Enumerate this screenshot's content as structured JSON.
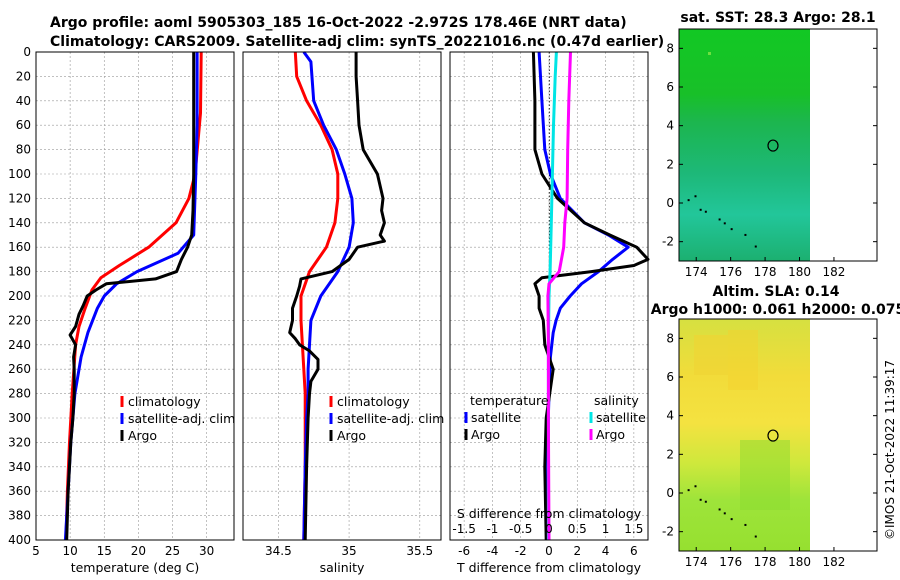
{
  "page": {
    "title_line1": "Argo profile: aoml 5905303_185 16-Oct-2022 -2.972S 178.46E (NRT data)",
    "title_line2": "Climatology: CARS2009. Satellite-adj clim: synTS_20221016.nc (0.47d earlier)",
    "credit": "©IMOS 21-Oct-2022 11:39:17"
  },
  "colors": {
    "climatology": "#ff0000",
    "satellite": "#0000ff",
    "argo": "#000000",
    "sal_satellite": "#00e5e5",
    "sal_argo": "#ff00ff"
  },
  "chart_data": [
    {
      "type": "line",
      "id": "temperature",
      "xlabel": "temperature (deg C)",
      "xlim": [
        5,
        34
      ],
      "xticks": [
        5,
        10,
        15,
        20,
        25,
        30
      ],
      "ylim": [
        400,
        0
      ],
      "yticks": [
        0,
        20,
        40,
        60,
        80,
        100,
        120,
        140,
        160,
        180,
        200,
        220,
        240,
        260,
        280,
        300,
        320,
        340,
        360,
        380,
        400
      ],
      "legend": [
        "climatology",
        "satellite-adj. clim",
        "Argo"
      ],
      "series": [
        {
          "name": "climatology",
          "color": "#ff0000",
          "depth": [
            0,
            50,
            100,
            120,
            140,
            160,
            175,
            185,
            195,
            210,
            225,
            240,
            280,
            320,
            360,
            400
          ],
          "values": [
            29.2,
            29.1,
            28.3,
            27.4,
            25.5,
            21.5,
            17.2,
            14.5,
            13.2,
            12.2,
            11.3,
            10.8,
            10.3,
            9.9,
            9.6,
            9.4
          ]
        },
        {
          "name": "satellite-adj. clim",
          "color": "#0000ff",
          "depth": [
            0,
            60,
            100,
            150,
            165,
            180,
            190,
            200,
            210,
            230,
            250,
            280,
            320,
            360,
            400
          ],
          "values": [
            28.6,
            28.6,
            28.4,
            28.1,
            25.8,
            19.8,
            16.8,
            15.0,
            14.0,
            12.6,
            11.6,
            10.7,
            10.1,
            9.7,
            9.3
          ]
        },
        {
          "name": "Argo",
          "color": "#000000",
          "depth": [
            0,
            50,
            100,
            130,
            150,
            160,
            170,
            180,
            186,
            190,
            195,
            200,
            208,
            215,
            225,
            232,
            240,
            250,
            260,
            280,
            300,
            320,
            340,
            360,
            380,
            400
          ],
          "values": [
            28.1,
            28.1,
            28.1,
            28.0,
            27.8,
            27.2,
            26.3,
            25.6,
            22.5,
            15.3,
            13.8,
            12.5,
            11.9,
            11.3,
            10.8,
            10.0,
            10.8,
            10.5,
            10.6,
            10.6,
            10.4,
            10.1,
            9.9,
            9.7,
            9.6,
            9.5
          ]
        }
      ]
    },
    {
      "type": "line",
      "id": "salinity",
      "xlabel": "salinity",
      "xlim": [
        34.25,
        35.65
      ],
      "xticks": [
        34.5,
        35,
        35.5
      ],
      "ylim": [
        400,
        0
      ],
      "legend": [
        "climatology",
        "satellite-adj. clim",
        "Argo"
      ],
      "series": [
        {
          "name": "climatology",
          "color": "#ff0000",
          "depth": [
            0,
            20,
            40,
            60,
            80,
            100,
            120,
            140,
            160,
            180,
            200,
            220,
            240,
            260,
            280,
            300,
            340,
            400
          ],
          "values": [
            34.62,
            34.63,
            34.7,
            34.8,
            34.88,
            34.92,
            34.92,
            34.9,
            34.84,
            34.72,
            34.66,
            34.66,
            34.67,
            34.68,
            34.69,
            34.69,
            34.69,
            34.68
          ]
        },
        {
          "name": "satellite-adj. clim",
          "color": "#0000ff",
          "depth": [
            0,
            8,
            40,
            60,
            80,
            100,
            120,
            140,
            160,
            180,
            200,
            220,
            240,
            260,
            280,
            300,
            340,
            400
          ],
          "values": [
            34.68,
            34.73,
            34.75,
            34.82,
            34.91,
            34.97,
            35.02,
            35.03,
            35.0,
            34.92,
            34.8,
            34.73,
            34.72,
            34.71,
            34.71,
            34.7,
            34.69,
            34.68
          ]
        },
        {
          "name": "Argo",
          "color": "#000000",
          "depth": [
            0,
            20,
            40,
            60,
            80,
            100,
            110,
            120,
            130,
            140,
            150,
            155,
            160,
            170,
            180,
            186,
            192,
            200,
            210,
            220,
            230,
            235,
            240,
            245,
            252,
            260,
            270,
            280,
            300,
            340,
            400
          ],
          "values": [
            35.05,
            35.05,
            35.06,
            35.07,
            35.1,
            35.2,
            35.22,
            35.24,
            35.23,
            35.25,
            35.22,
            35.25,
            35.06,
            35.0,
            34.88,
            34.66,
            34.65,
            34.63,
            34.6,
            34.6,
            34.58,
            34.62,
            34.65,
            34.72,
            34.78,
            34.78,
            34.73,
            34.72,
            34.71,
            34.7,
            34.69
          ]
        }
      ]
    },
    {
      "type": "line",
      "id": "difference",
      "xlabel": "T difference from climatology",
      "xlabel_top": "S difference from climatology",
      "xlim": [
        -7,
        7
      ],
      "xticks": [
        -6,
        -4,
        -2,
        0,
        2,
        4,
        6
      ],
      "xticks_top": [
        "-1.5",
        "-1",
        "-0.5",
        "0",
        "0.5",
        "1",
        "1.5"
      ],
      "ylim": [
        400,
        0
      ],
      "legend_temperature_title": "temperature",
      "legend_salinity_title": "salinity",
      "legend_temperature": [
        "satellite",
        "Argo"
      ],
      "legend_salinity": [
        "satellite",
        "Argo"
      ],
      "series": [
        {
          "name": "T satellite",
          "color": "#0000ff",
          "depth": [
            0,
            40,
            80,
            100,
            120,
            140,
            150,
            160,
            170,
            180,
            190,
            200,
            210,
            220,
            230,
            250,
            280,
            320,
            360,
            400
          ],
          "values": [
            -0.7,
            -0.5,
            -0.3,
            0.1,
            0.8,
            2.5,
            4.2,
            5.6,
            4.5,
            3.5,
            2.3,
            1.5,
            0.8,
            0.5,
            0.3,
            0.1,
            0.0,
            -0.1,
            -0.1,
            -0.1
          ]
        },
        {
          "name": "T Argo",
          "color": "#000000",
          "depth": [
            0,
            40,
            80,
            100,
            120,
            140,
            150,
            160,
            170,
            175,
            180,
            185,
            190,
            200,
            210,
            220,
            240,
            260,
            300,
            340,
            400
          ],
          "values": [
            -1.1,
            -1.0,
            -1.0,
            -0.5,
            0.6,
            2.5,
            4.3,
            6.2,
            7.0,
            6.0,
            3.0,
            -0.5,
            -1.0,
            -0.7,
            -0.7,
            -0.4,
            -0.3,
            0.3,
            -0.2,
            -0.3,
            -0.2
          ]
        },
        {
          "name": "S satellite",
          "color": "#00e5e5",
          "depth": [
            0,
            20,
            60,
            100,
            140,
            180,
            200,
            240,
            300,
            400
          ],
          "values": [
            0.13,
            0.11,
            0.08,
            0.06,
            0.04,
            0.02,
            0.0,
            -0.01,
            -0.01,
            -0.01
          ]
        },
        {
          "name": "S Argo",
          "color": "#ff00ff",
          "depth": [
            0,
            40,
            80,
            120,
            140,
            160,
            180,
            190,
            200,
            240,
            300,
            400
          ],
          "values": [
            0.38,
            0.35,
            0.33,
            0.32,
            0.28,
            0.26,
            0.18,
            0.0,
            -0.02,
            -0.01,
            -0.01,
            0.0
          ]
        }
      ]
    },
    {
      "type": "heatmap",
      "id": "sst",
      "title": "sat. SST: 28.3 Argo: 28.1",
      "xlim": [
        173,
        184.5
      ],
      "xticks": [
        174,
        176,
        178,
        180,
        182
      ],
      "ylim": [
        -3,
        9
      ],
      "yticks": [
        -2,
        0,
        2,
        4,
        6,
        8
      ],
      "float_position": [
        178.46,
        2.97
      ],
      "data_extent_lon": 180
    },
    {
      "type": "heatmap",
      "id": "sla",
      "title": "Altim. SLA: 0.14",
      "subtitle": "Argo h1000: 0.061 h2000: 0.075",
      "xlim": [
        173,
        184.5
      ],
      "xticks": [
        174,
        176,
        178,
        180,
        182
      ],
      "ylim": [
        -3,
        9
      ],
      "yticks": [
        -2,
        0,
        2,
        4,
        6,
        8
      ],
      "float_position": [
        178.46,
        2.97
      ],
      "data_extent_lon": 180
    }
  ]
}
